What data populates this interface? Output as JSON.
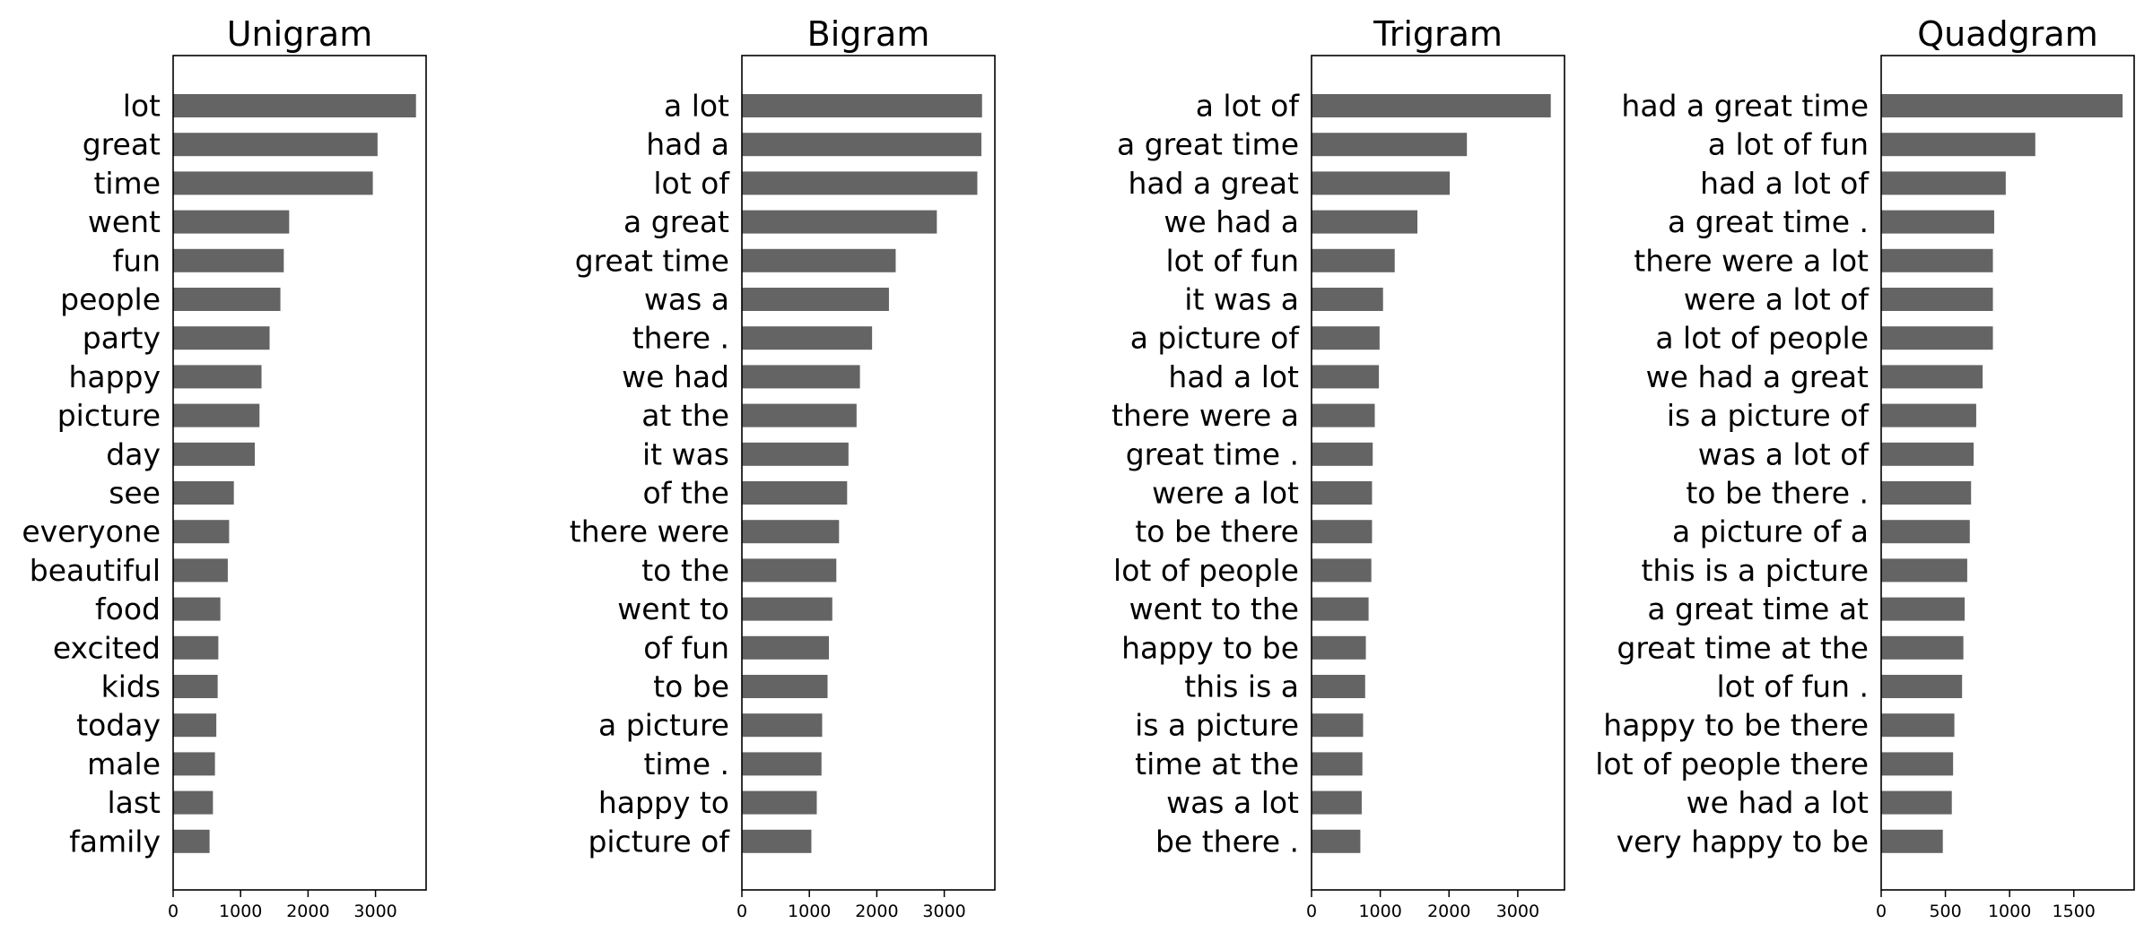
{
  "colors": {
    "bar": "#646464",
    "axis": "#000000",
    "background": "#ffffff"
  },
  "chart_data": [
    {
      "type": "bar",
      "orientation": "horizontal",
      "title": "Unigram",
      "grid": false,
      "xlim": [
        0,
        3750
      ],
      "xticks": [
        0,
        1000,
        2000,
        3000
      ],
      "tick_labels": [
        "0",
        "1000",
        "2000",
        "3000"
      ],
      "categories": [
        "lot",
        "great",
        "time",
        "went",
        "fun",
        "people",
        "party",
        "happy",
        "picture",
        "day",
        "see",
        "everyone",
        "beautiful",
        "food",
        "excited",
        "kids",
        "today",
        "male",
        "last",
        "family"
      ],
      "values": [
        3600,
        3030,
        2960,
        1720,
        1640,
        1590,
        1430,
        1310,
        1280,
        1210,
        900,
        830,
        810,
        700,
        670,
        660,
        640,
        620,
        590,
        540
      ]
    },
    {
      "type": "bar",
      "orientation": "horizontal",
      "title": "Bigram",
      "grid": false,
      "xlim": [
        0,
        3750
      ],
      "xticks": [
        0,
        1000,
        2000,
        3000
      ],
      "tick_labels": [
        "0",
        "1000",
        "2000",
        "3000"
      ],
      "categories": [
        "a lot",
        "had a",
        "lot of",
        "a great",
        "great time",
        "was a",
        "there .",
        "we had",
        "at the",
        "it was",
        "of the",
        "there were",
        "to the",
        "went to",
        "of fun",
        "to be",
        "a picture",
        "time .",
        "happy to",
        "picture of"
      ],
      "values": [
        3560,
        3550,
        3490,
        2890,
        2280,
        2180,
        1930,
        1750,
        1700,
        1580,
        1560,
        1440,
        1400,
        1340,
        1290,
        1270,
        1190,
        1180,
        1110,
        1030
      ]
    },
    {
      "type": "bar",
      "orientation": "horizontal",
      "title": "Trigram",
      "grid": false,
      "xlim": [
        0,
        3680
      ],
      "xticks": [
        0,
        1000,
        2000,
        3000
      ],
      "tick_labels": [
        "0",
        "1000",
        "2000",
        "3000"
      ],
      "categories": [
        "a lot of",
        "a great time",
        "had a great",
        "we had a",
        "lot of fun",
        "it was a",
        "a picture of",
        "had a lot",
        "there were a",
        "great time .",
        "were a lot",
        "to be there",
        "lot of people",
        "went to the",
        "happy to be",
        "this is a",
        "is a picture",
        "time at the",
        "was a lot",
        "be there ."
      ],
      "values": [
        3480,
        2260,
        2010,
        1540,
        1210,
        1040,
        990,
        980,
        920,
        890,
        880,
        880,
        870,
        830,
        790,
        780,
        750,
        740,
        730,
        710
      ]
    },
    {
      "type": "bar",
      "orientation": "horizontal",
      "title": "Quadgram",
      "grid": false,
      "xlim": [
        0,
        1970
      ],
      "xticks": [
        0,
        500,
        1000,
        1500
      ],
      "tick_labels": [
        "0",
        "500",
        "1000",
        "1500"
      ],
      "categories": [
        "had a great time",
        "a lot of fun",
        "had a lot of",
        "a great time .",
        "there were a lot",
        "were a lot of",
        "a lot of people",
        "we had a great",
        "is a picture of",
        "was a lot of",
        "to be there .",
        "a picture of a",
        "this is a picture",
        "a great time at",
        "great time at the",
        "lot of fun .",
        "happy to be there",
        "lot of people there",
        "we had a lot",
        "very happy to be"
      ],
      "values": [
        1880,
        1200,
        970,
        880,
        870,
        870,
        870,
        790,
        740,
        720,
        700,
        690,
        670,
        650,
        640,
        630,
        570,
        560,
        550,
        480
      ]
    }
  ]
}
